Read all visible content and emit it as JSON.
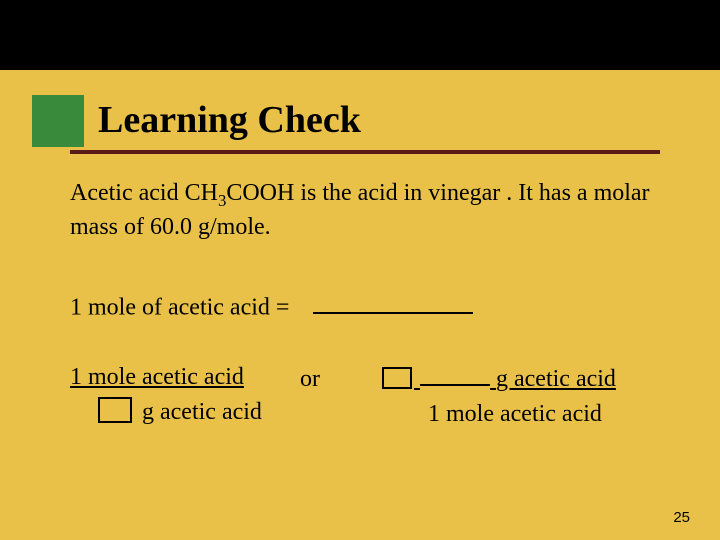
{
  "colors": {
    "background": "#eac148",
    "top_band": "#000000",
    "accent_block": "#3a8a3c",
    "underline": "#5a1a1a",
    "text": "#000000"
  },
  "typography": {
    "title_fontsize": 38,
    "body_fontsize": 24,
    "pagenum_fontsize": 15,
    "title_weight": "bold",
    "family": "Times New Roman"
  },
  "title": "Learning Check",
  "body": {
    "line1_pre": "Acetic acid CH",
    "line1_sub": "3",
    "line1_post": "COOH is the acid in vinegar . It has a molar mass of 60.0 g/mole."
  },
  "line2": {
    "text": "1 mole of acetic acid   ="
  },
  "fraction": {
    "left_top": "1 mole acetic acid",
    "left_bottom_suffix": "g acetic acid",
    "or": "or",
    "right_top_suffix": "g  acetic acid",
    "right_bottom": "1 mole acetic acid"
  },
  "page_number": "25"
}
